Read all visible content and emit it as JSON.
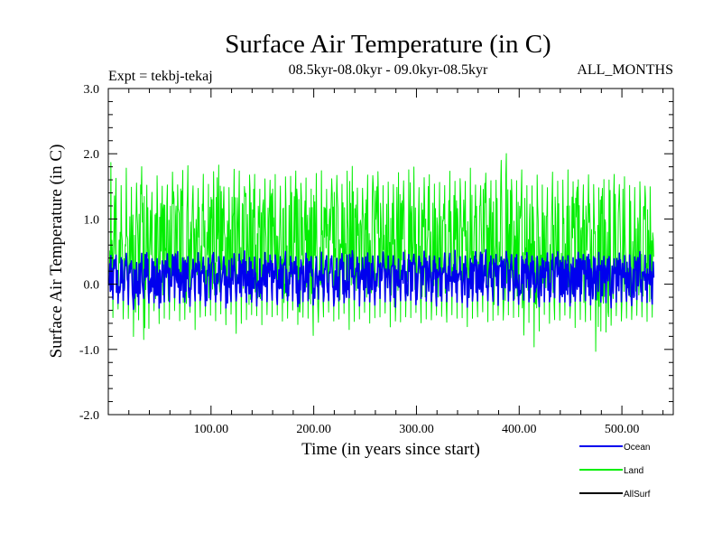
{
  "chart_data": {
    "type": "line",
    "title": "Surface Air Temperature (in C)",
    "subtitle_left": "Expt = tekbj-tekaj",
    "subtitle_center": "08.5kyr-08.0kyr - 09.0kyr-08.5kyr",
    "subtitle_right": "ALL_MONTHS",
    "xlabel": "Time (in years since start)",
    "ylabel": "Surface Air Temperature (in C)",
    "xlim": [
      0,
      550
    ],
    "ylim": [
      -2.0,
      3.0
    ],
    "xticks": [
      100,
      200,
      300,
      400,
      500
    ],
    "xtick_labels": [
      "100.00",
      "200.00",
      "300.00",
      "400.00",
      "500.00"
    ],
    "yticks": [
      -2.0,
      -1.0,
      0.0,
      1.0,
      2.0,
      3.0
    ],
    "ytick_labels": [
      "-2.0",
      "-1.0",
      "0.0",
      "1.0",
      "2.0",
      "3.0"
    ],
    "grid": false,
    "legend_position": "bottom-right",
    "series": [
      {
        "name": "Land",
        "color": "#00ee00",
        "x_start": 1,
        "x_step": 5,
        "values": [
          0.62,
          0.85,
          0.21,
          0.94,
          0.55,
          0.18,
          1.12,
          0.47,
          0.73,
          0.31,
          0.96,
          0.58,
          0.24,
          0.82,
          1.05,
          0.41,
          0.67,
          0.12,
          0.88,
          0.52,
          0.36,
          0.99,
          0.61,
          0.27,
          0.79,
          0.45,
          1.15,
          0.58,
          0.33,
          0.92,
          0.64,
          0.19,
          0.71,
          0.48,
          0.86,
          0.29,
          0.95,
          0.55,
          0.38,
          0.77,
          0.63,
          0.22,
          0.89,
          0.51,
          0.74,
          0.35,
          1.02,
          0.59,
          0.44,
          0.81,
          0.26,
          0.68,
          0.93,
          0.39,
          0.57,
          0.84,
          0.31,
          0.72,
          0.49,
          0.96,
          0.25,
          0.66,
          0.87,
          0.42,
          0.58,
          0.78,
          0.34,
          0.91,
          0.53,
          0.69,
          0.28,
          0.83,
          0.46,
          1.08,
          0.61,
          0.37,
          0.75,
          0.52,
          0.89,
          0.33,
          0.64,
          0.95,
          0.41,
          0.71,
          0.56,
          0.27,
          0.86,
          0.62,
          0.43,
          0.79,
          0.48,
          0.92,
          0.35,
          0.67,
          0.58,
          0.24,
          0.81,
          0.53,
          0.74,
          0.39,
          0.88,
          0.47,
          0.69,
          0.31,
          0.94,
          0.55,
          0.42
        ],
        "min_envelope": [
          -0.42,
          -0.55,
          -0.31,
          -0.63,
          -0.48,
          -0.94,
          -0.38,
          -1.05,
          -0.52,
          -0.36,
          -0.71,
          -0.44,
          -0.58,
          -0.33,
          -0.66,
          -0.49,
          -0.41,
          -0.82,
          -0.37,
          -0.54,
          -0.45,
          -0.61,
          -0.39,
          -0.72,
          -0.35,
          -0.93,
          -0.46,
          -0.58,
          -0.42,
          -0.51,
          -0.67,
          -0.38,
          -0.55,
          -0.44,
          -0.62,
          -0.48,
          -0.36,
          -0.73,
          -0.41,
          -0.57,
          -0.88,
          -0.46,
          -0.52,
          -0.39,
          -0.64,
          -0.49,
          -0.43,
          -0.81,
          -0.47,
          -0.56,
          -0.38,
          -0.69,
          -0.44,
          -0.53,
          -0.41,
          -0.76,
          -0.48,
          -0.62,
          -0.45,
          -0.54,
          -0.39,
          -0.68,
          -0.47,
          -0.58,
          -0.43,
          -0.52,
          -0.61,
          -0.41,
          -0.57,
          -0.49,
          -0.72,
          -0.44,
          -0.53,
          -0.38,
          -0.66,
          -0.51,
          -0.46,
          -0.59,
          -0.42,
          -0.55,
          -0.48,
          -0.91,
          -0.45,
          -1.18,
          -0.52,
          -0.44,
          -0.67,
          -0.49,
          -0.58,
          -0.43,
          -0.56,
          -0.71,
          -0.47,
          -0.62,
          -0.52,
          -1.25,
          -0.49,
          -0.84,
          -0.54,
          -0.46,
          -0.61,
          -0.48,
          -0.57,
          -0.44,
          -0.53,
          -0.59,
          -0.47
        ],
        "max_envelope": [
          1.92,
          1.74,
          1.35,
          1.89,
          1.52,
          1.41,
          1.88,
          1.62,
          1.28,
          1.71,
          1.55,
          1.39,
          1.83,
          1.46,
          1.67,
          1.92,
          1.58,
          1.34,
          1.77,
          1.49,
          1.63,
          1.95,
          1.54,
          1.38,
          1.72,
          1.86,
          1.45,
          1.61,
          1.82,
          1.37,
          1.66,
          1.51,
          1.79,
          1.43,
          1.68,
          1.57,
          1.85,
          1.47,
          1.73,
          1.39,
          1.62,
          1.88,
          1.41,
          1.56,
          1.75,
          1.48,
          1.65,
          1.93,
          1.52,
          1.37,
          1.71,
          1.59,
          1.84,
          1.46,
          1.63,
          1.42,
          1.78,
          1.55,
          1.67,
          1.95,
          1.44,
          1.58,
          1.76,
          1.49,
          1.64,
          1.38,
          1.82,
          1.53,
          1.69,
          1.45,
          1.87,
          1.57,
          1.41,
          1.74,
          1.62,
          1.51,
          1.79,
          2.15,
          1.66,
          1.48,
          1.84,
          1.55,
          1.42,
          1.71,
          1.59,
          1.36,
          1.76,
          1.62,
          1.49,
          1.85,
          1.53,
          1.67,
          1.44,
          1.72,
          1.58,
          1.41,
          1.64,
          1.52,
          1.78,
          1.46,
          1.69,
          1.55,
          1.43,
          1.61,
          1.48,
          1.56,
          1.34
        ]
      },
      {
        "name": "Ocean",
        "color": "#0000ee",
        "x_start": 1,
        "x_step": 5,
        "values": [
          0.12,
          0.18,
          0.05,
          0.22,
          0.09,
          -0.04,
          0.15,
          0.24,
          0.07,
          0.13,
          -0.02,
          0.19,
          0.11,
          0.26,
          0.08,
          0.16,
          0.03,
          0.21,
          0.14,
          0.06,
          0.23,
          0.1,
          0.17,
          -0.01,
          0.2,
          0.12,
          0.27,
          0.09,
          0.15,
          0.04,
          0.22,
          0.13,
          0.18,
          0.07,
          0.25,
          0.11,
          0.16,
          0.02,
          0.19,
          0.14,
          0.08,
          0.23,
          0.12,
          0.17,
          0.05,
          0.21,
          0.1,
          0.26,
          0.13,
          0.07,
          0.2,
          0.15,
          0.09,
          0.24,
          0.11,
          0.18,
          0.03,
          0.22,
          0.14,
          0.19,
          0.08,
          0.25,
          0.12,
          0.16,
          0.06,
          0.21,
          0.13,
          0.28,
          0.1,
          0.17,
          0.04,
          0.23,
          0.15,
          0.31,
          0.11,
          0.19,
          0.07,
          0.24,
          0.14,
          0.18,
          0.09,
          0.22,
          0.12,
          0.16,
          0.05,
          0.2,
          0.13,
          0.25,
          0.1,
          0.17,
          0.06,
          0.22,
          0.14,
          0.19,
          0.08,
          0.23,
          0.11,
          0.16,
          0.04,
          0.21,
          0.12,
          0.18,
          0.07,
          0.24,
          0.13,
          0.17,
          0.1
        ],
        "min_envelope": [
          -0.18,
          -0.25,
          -0.31,
          -0.22,
          -0.35,
          -0.4,
          -0.28,
          -0.19,
          -0.33,
          -0.26,
          -0.41,
          -0.21,
          -0.29,
          -0.17,
          -0.34,
          -0.24,
          -0.38,
          -0.2,
          -0.27,
          -0.36,
          -0.18,
          -0.31,
          -0.23,
          -0.42,
          -0.2,
          -0.28,
          -0.15,
          -0.33,
          -0.25,
          -0.37,
          -0.19,
          -0.3,
          -0.22,
          -0.35,
          -0.16,
          -0.29,
          -0.24,
          -0.39,
          -0.21,
          -0.27,
          -0.34,
          -0.18,
          -0.3,
          -0.23,
          -0.38,
          -0.2,
          -0.32,
          -0.16,
          -0.27,
          -0.36,
          -0.22,
          -0.29,
          -0.33,
          -0.17,
          -0.31,
          -0.24,
          -0.4,
          -0.19,
          -0.28,
          -0.23,
          -0.35,
          -0.16,
          -0.3,
          -0.25,
          -0.37,
          -0.21,
          -0.29,
          -0.14,
          -0.33,
          -0.26,
          -0.39,
          -0.2,
          -0.28,
          -0.12,
          -0.31,
          -0.24,
          -0.36,
          -0.18,
          -0.29,
          -0.23,
          -0.34,
          -0.2,
          -0.3,
          -0.26,
          -0.38,
          -0.22,
          -0.29,
          -0.17,
          -0.32,
          -0.25,
          -0.37,
          -0.21,
          -0.28,
          -0.24,
          -0.35,
          -0.19,
          -0.31,
          -0.27,
          -0.4,
          -0.22,
          -0.29,
          -0.25,
          -0.36,
          -0.18,
          -0.3,
          -0.27,
          -0.32
        ],
        "max_envelope": [
          0.42,
          0.48,
          0.36,
          0.51,
          0.39,
          0.28,
          0.45,
          0.53,
          0.37,
          0.43,
          0.3,
          0.49,
          0.41,
          0.55,
          0.38,
          0.46,
          0.33,
          0.5,
          0.44,
          0.35,
          0.52,
          0.4,
          0.47,
          0.31,
          0.49,
          0.42,
          0.56,
          0.39,
          0.45,
          0.34,
          0.51,
          0.43,
          0.48,
          0.37,
          0.54,
          0.41,
          0.46,
          0.32,
          0.49,
          0.44,
          0.38,
          0.52,
          0.42,
          0.47,
          0.35,
          0.5,
          0.4,
          0.55,
          0.43,
          0.37,
          0.49,
          0.45,
          0.39,
          0.53,
          0.41,
          0.48,
          0.33,
          0.51,
          0.44,
          0.49,
          0.38,
          0.54,
          0.42,
          0.46,
          0.36,
          0.5,
          0.43,
          0.57,
          0.4,
          0.47,
          0.34,
          0.52,
          0.45,
          0.58,
          0.41,
          0.49,
          0.37,
          0.53,
          0.44,
          0.48,
          0.39,
          0.51,
          0.42,
          0.46,
          0.35,
          0.5,
          0.43,
          0.54,
          0.4,
          0.47,
          0.36,
          0.51,
          0.44,
          0.49,
          0.38,
          0.52,
          0.41,
          0.46,
          0.34,
          0.5,
          0.42,
          0.48,
          0.37,
          0.53,
          0.43,
          0.47,
          0.4
        ]
      },
      {
        "name": "AllSurf",
        "color": "#000000",
        "x_start": 1,
        "x_step": 5,
        "values": []
      }
    ],
    "legend": [
      {
        "name": "Ocean",
        "color": "#0000ee"
      },
      {
        "name": "Land",
        "color": "#00ee00"
      },
      {
        "name": "AllSurf",
        "color": "#000000"
      }
    ]
  }
}
